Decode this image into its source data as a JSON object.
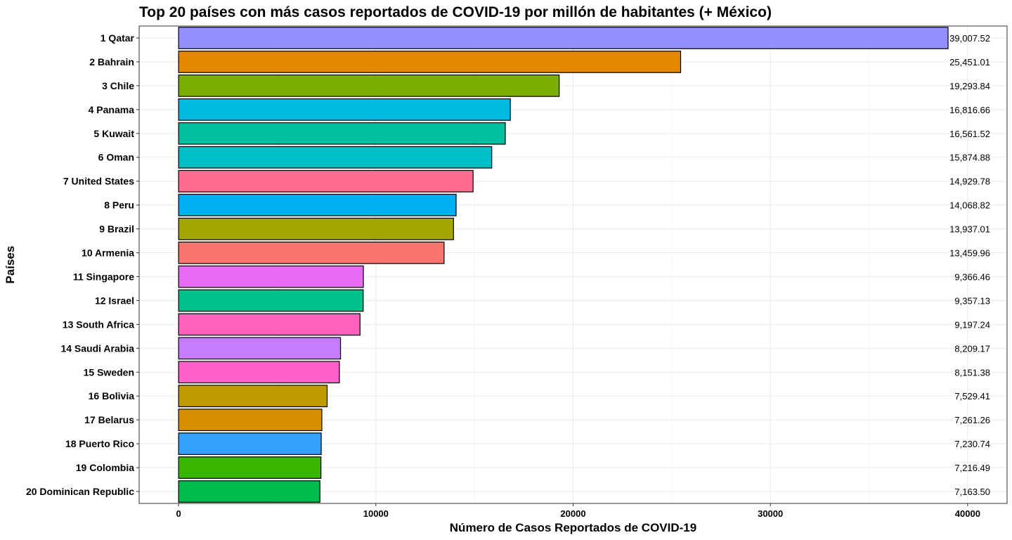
{
  "chart_data": {
    "type": "bar",
    "orientation": "horizontal",
    "title": "Top 20 países con más casos reportados de COVID-19 por millón de habitantes (+ México)",
    "xlabel": "Número de Casos Reportados de COVID-19",
    "ylabel": "Países",
    "xlim": [
      -2000,
      42000
    ],
    "x_ticks": [
      0,
      10000,
      20000,
      30000,
      40000
    ],
    "x_tick_labels": [
      "0",
      "10000",
      "20000",
      "30000",
      "40000"
    ],
    "grid": true,
    "legend": "none",
    "categories": [
      "1 Qatar",
      "2 Bahrain",
      "3 Chile",
      "4 Panama",
      "5 Kuwait",
      "6 Oman",
      "7 United States",
      "8 Peru",
      "9 Brazil",
      "10 Armenia",
      "11 Singapore",
      "12 Israel",
      "13 South Africa",
      "14 Saudi Arabia",
      "15 Sweden",
      "16 Bolivia",
      "17 Belarus",
      "18 Puerto Rico",
      "19 Colombia",
      "20 Dominican Republic"
    ],
    "values": [
      39007.52,
      25451.01,
      19293.84,
      16816.66,
      16561.52,
      15874.88,
      14929.78,
      14068.82,
      13937.01,
      13459.96,
      9366.46,
      9357.13,
      9197.24,
      8209.17,
      8151.38,
      7529.41,
      7261.26,
      7230.74,
      7216.49,
      7163.5
    ],
    "value_labels": [
      "39,007.52",
      "25,451.01",
      "19,293.84",
      "16,816.66",
      "16,561.52",
      "15,874.88",
      "14,929.78",
      "14,068.82",
      "13,937.01",
      "13,459.96",
      "9,366.46",
      "9,357.13",
      "9,197.24",
      "8,209.17",
      "8,151.38",
      "7,529.41",
      "7,261.26",
      "7,230.74",
      "7,216.49",
      "7,163.50"
    ],
    "colors": [
      "#9590FF",
      "#E58700",
      "#7CAE00",
      "#00BAE0",
      "#00C19F",
      "#00BFC4",
      "#FF6C91",
      "#00B0F6",
      "#A3A500",
      "#F8766D",
      "#E76BF3",
      "#00C08B",
      "#FF62BC",
      "#C77CFF",
      "#FF61C9",
      "#C09B00",
      "#D89000",
      "#35A2FF",
      "#39B600",
      "#00BB4E"
    ],
    "bar_border_color": "#000000",
    "panel_border_color": "#333333",
    "grid_color": "#EBEBEB"
  }
}
